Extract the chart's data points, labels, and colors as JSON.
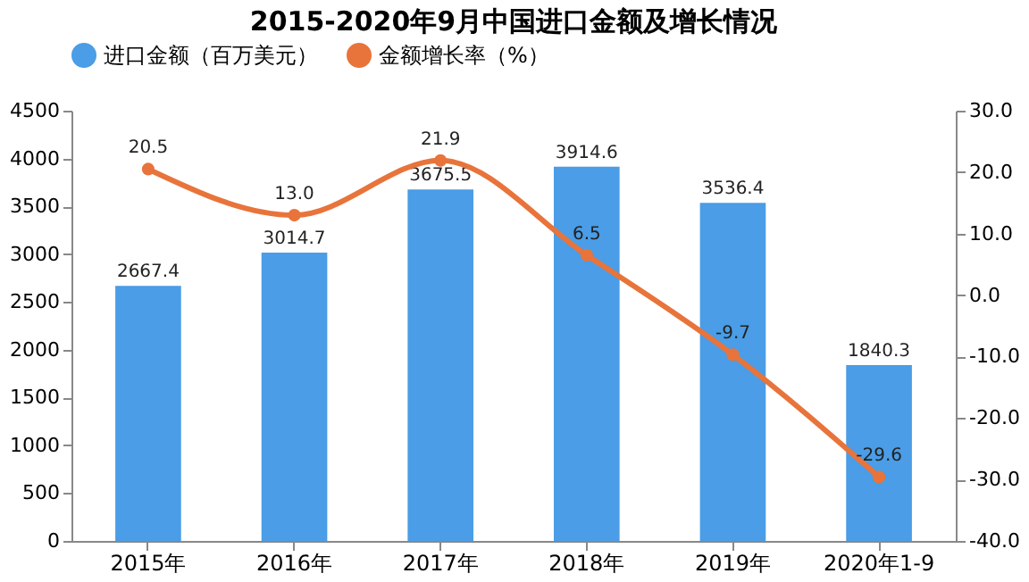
{
  "chart_data": {
    "type": "bar",
    "title": "2015-2020年9月中国进口金额及增长情况",
    "categories": [
      "2015年",
      "2016年",
      "2017年",
      "2018年",
      "2019年",
      "2020年1-9"
    ],
    "series": [
      {
        "name": "进口金额（百万美元）",
        "color": "#4a9de6",
        "values": [
          2667.4,
          3014.7,
          3675.5,
          3914.6,
          3536.4,
          1840.3
        ]
      },
      {
        "name": "金额增长率（%）",
        "type": "line",
        "axis": "y2",
        "color": "#e8743b",
        "values": [
          20.5,
          13.0,
          21.9,
          6.5,
          -9.7,
          -29.6
        ],
        "value_labels": [
          "20.5",
          "13.0",
          "21.9",
          "6.5",
          "-9.7",
          "-29.6"
        ]
      }
    ],
    "ylim": [
      0,
      4500
    ],
    "yticks": [
      0,
      500,
      1000,
      1500,
      2000,
      2500,
      3000,
      3500,
      4000,
      4500
    ],
    "y2lim": [
      -40,
      30
    ],
    "y2ticks": [
      {
        "value": -40,
        "label": "-40.0"
      },
      {
        "value": -30,
        "label": "-30.0"
      },
      {
        "value": -20,
        "label": "-20.0"
      },
      {
        "value": -10,
        "label": "-10.0"
      },
      {
        "value": 0,
        "label": "0.0"
      },
      {
        "value": 10,
        "label": "10.0"
      },
      {
        "value": 20,
        "label": "20.0"
      },
      {
        "value": 30,
        "label": "30.0"
      }
    ],
    "data_labels": true,
    "legend": "top",
    "grid": false,
    "marker": "circle"
  }
}
